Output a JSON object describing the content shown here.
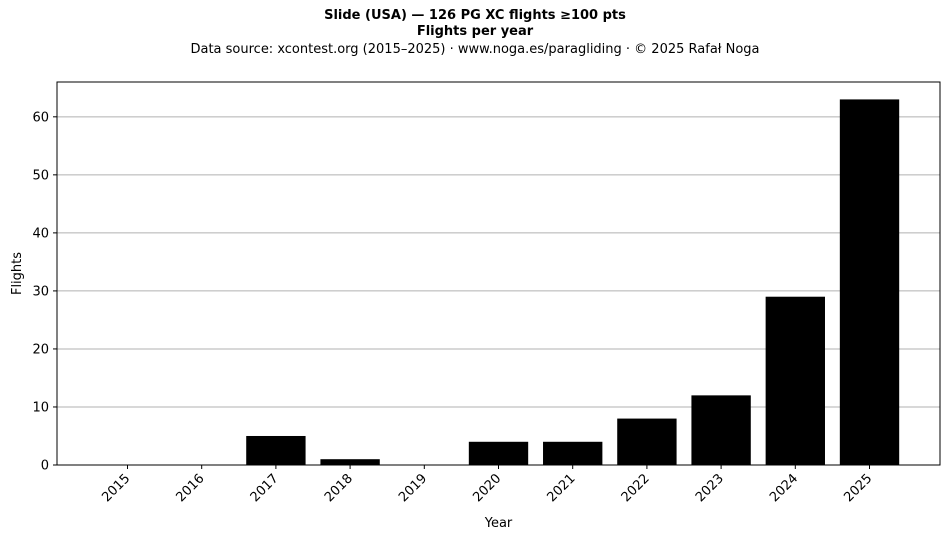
{
  "chart_data": {
    "type": "bar",
    "title": "Slide (USA)  —  126 PG XC flights ≥100 pts",
    "subtitle": "Flights per year",
    "source_line": "Data source: xcontest.org (2015–2025)  ·  www.noga.es/paragliding  ·  © 2025 Rafał Noga",
    "xlabel": "Year",
    "ylabel": "Flights",
    "categories": [
      "2015",
      "2016",
      "2017",
      "2018",
      "2019",
      "2020",
      "2021",
      "2022",
      "2023",
      "2024",
      "2025"
    ],
    "values": [
      0,
      0,
      5,
      1,
      0,
      4,
      4,
      8,
      12,
      29,
      63
    ],
    "ylim": [
      0,
      66
    ],
    "yticks": [
      0,
      10,
      20,
      30,
      40,
      50,
      60
    ],
    "grid": "horizontal",
    "bar_color": "#000000",
    "grid_color": "#b0b0b0"
  }
}
